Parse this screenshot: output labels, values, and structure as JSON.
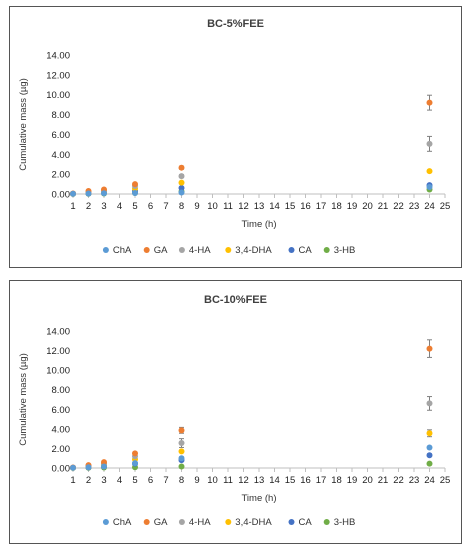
{
  "chart_data": [
    {
      "type": "scatter",
      "title": "BC-5%FEE",
      "xlabel": "Time (h)",
      "ylabel": "Cumulative mass (µg)",
      "xlim": [
        1,
        25
      ],
      "ylim": [
        0,
        14
      ],
      "x_ticks": [
        1,
        2,
        3,
        4,
        5,
        6,
        7,
        8,
        9,
        10,
        11,
        12,
        13,
        14,
        15,
        16,
        17,
        18,
        19,
        20,
        21,
        22,
        23,
        24,
        25
      ],
      "y_ticks": [
        "0.00",
        "2.00",
        "4.00",
        "6.00",
        "8.00",
        "10.00",
        "12.00",
        "14.00"
      ],
      "grid": false,
      "legend": "bottom",
      "series": [
        {
          "name": "ChA",
          "color": "#5B9BD5",
          "x": [
            1,
            2,
            3,
            5,
            8,
            24
          ],
          "y": [
            0.02,
            0.05,
            0.08,
            0.1,
            0.15,
            0.7
          ]
        },
        {
          "name": "GA",
          "color": "#ED7D31",
          "x": [
            1,
            2,
            3,
            5,
            8,
            24
          ],
          "y": [
            0.05,
            0.3,
            0.45,
            1.0,
            2.65,
            9.2
          ],
          "err": [
            0,
            0,
            0,
            0.1,
            0.15,
            0.75
          ]
        },
        {
          "name": "4-HA",
          "color": "#A5A5A5",
          "x": [
            1,
            2,
            3,
            5,
            8,
            24
          ],
          "y": [
            0.03,
            0.15,
            0.3,
            0.8,
            1.8,
            5.05
          ],
          "err": [
            0,
            0,
            0,
            0,
            0.15,
            0.75
          ]
        },
        {
          "name": "3,4-DHA",
          "color": "#FFC000",
          "x": [
            1,
            2,
            3,
            5,
            8,
            24
          ],
          "y": [
            0.03,
            0.1,
            0.2,
            0.55,
            1.15,
            2.3
          ]
        },
        {
          "name": "CA",
          "color": "#4472C4",
          "x": [
            1,
            2,
            3,
            5,
            8,
            24
          ],
          "y": [
            0.02,
            0.05,
            0.1,
            0.3,
            0.6,
            0.9
          ]
        },
        {
          "name": "3-HB",
          "color": "#70AD47",
          "x": [
            1,
            2,
            3,
            5,
            8,
            24
          ],
          "y": [
            0.01,
            0.03,
            0.05,
            0.1,
            0.25,
            0.45
          ]
        }
      ]
    },
    {
      "type": "scatter",
      "title": "BC-10%FEE",
      "xlabel": "Time (h)",
      "ylabel": "Cumulative mass (µg)",
      "xlim": [
        1,
        25
      ],
      "ylim": [
        0,
        14
      ],
      "x_ticks": [
        1,
        2,
        3,
        4,
        5,
        6,
        7,
        8,
        9,
        10,
        11,
        12,
        13,
        14,
        15,
        16,
        17,
        18,
        19,
        20,
        21,
        22,
        23,
        24,
        25
      ],
      "y_ticks": [
        "0.00",
        "2.00",
        "4.00",
        "6.00",
        "8.00",
        "10.00",
        "12.00",
        "14.00"
      ],
      "grid": false,
      "legend": "bottom",
      "series": [
        {
          "name": "ChA",
          "color": "#5B9BD5",
          "x": [
            1,
            2,
            3,
            5,
            8,
            24
          ],
          "y": [
            0.03,
            0.08,
            0.15,
            0.5,
            1.0,
            2.1
          ]
        },
        {
          "name": "GA",
          "color": "#ED7D31",
          "x": [
            1,
            2,
            3,
            5,
            8,
            24
          ],
          "y": [
            0.05,
            0.3,
            0.6,
            1.5,
            3.85,
            12.2
          ],
          "err": [
            0,
            0,
            0,
            0.1,
            0.3,
            0.9
          ]
        },
        {
          "name": "4-HA",
          "color": "#A5A5A5",
          "x": [
            1,
            2,
            3,
            5,
            8,
            24
          ],
          "y": [
            0.04,
            0.2,
            0.45,
            1.2,
            2.55,
            6.6
          ],
          "err": [
            0,
            0,
            0,
            0,
            0.45,
            0.7
          ]
        },
        {
          "name": "3,4-DHA",
          "color": "#FFC000",
          "x": [
            1,
            2,
            3,
            5,
            8,
            24
          ],
          "y": [
            0.03,
            0.12,
            0.3,
            0.9,
            1.7,
            3.55
          ],
          "err": [
            0,
            0,
            0,
            0,
            0,
            0.35
          ]
        },
        {
          "name": "CA",
          "color": "#4472C4",
          "x": [
            1,
            2,
            3,
            5,
            8,
            24
          ],
          "y": [
            0.02,
            0.06,
            0.15,
            0.45,
            0.8,
            1.3
          ]
        },
        {
          "name": "3-HB",
          "color": "#70AD47",
          "x": [
            1,
            2,
            3,
            5,
            8,
            24
          ],
          "y": [
            0.01,
            0.03,
            0.05,
            0.08,
            0.15,
            0.45
          ]
        }
      ]
    }
  ]
}
